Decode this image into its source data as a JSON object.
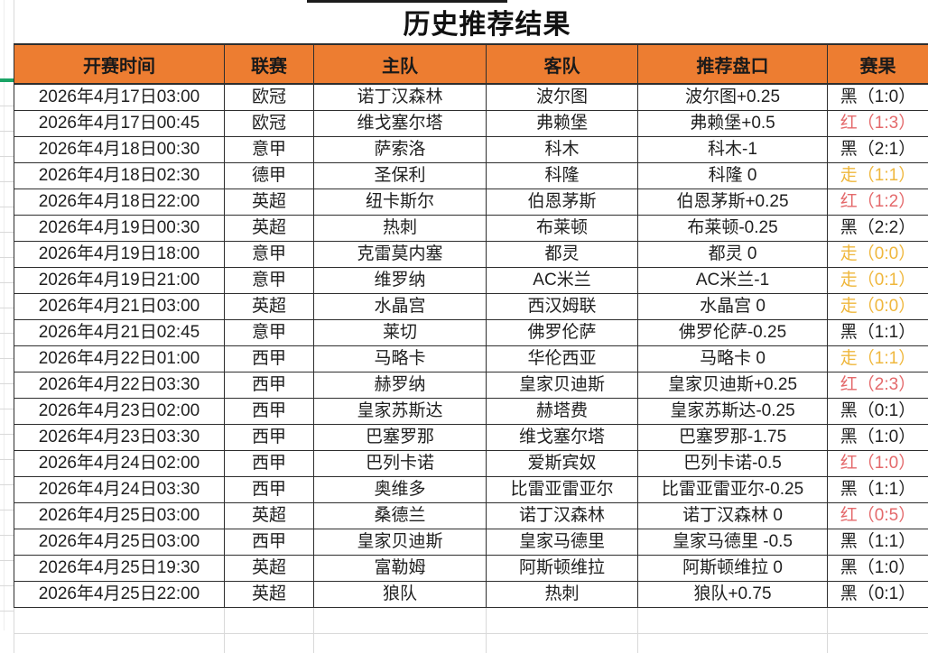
{
  "title": "历史推荐结果",
  "columns": [
    "开赛时间",
    "联赛",
    "主队",
    "客队",
    "推荐盘口",
    "赛果"
  ],
  "rows": [
    {
      "time": "2026年4月17日03:00",
      "league": "欧冠",
      "home": "诺丁汉森林",
      "away": "波尔图",
      "handicap": "波尔图+0.25",
      "result": "黑（1:0）",
      "result_color": "black"
    },
    {
      "time": "2026年4月17日00:45",
      "league": "欧冠",
      "home": "维戈塞尔塔",
      "away": "弗赖堡",
      "handicap": "弗赖堡+0.5",
      "result": "红（1:3）",
      "result_color": "red"
    },
    {
      "time": "2026年4月18日00:30",
      "league": "意甲",
      "home": "萨索洛",
      "away": "科木",
      "handicap": "科木-1",
      "result": "黑（2:1）",
      "result_color": "black"
    },
    {
      "time": "2026年4月18日02:30",
      "league": "德甲",
      "home": "圣保利",
      "away": "科隆",
      "handicap": "科隆 0",
      "result": "走（1:1）",
      "result_color": "push"
    },
    {
      "time": "2026年4月18日22:00",
      "league": "英超",
      "home": "纽卡斯尔",
      "away": "伯恩茅斯",
      "handicap": "伯恩茅斯+0.25",
      "result": "红（1:2）",
      "result_color": "red"
    },
    {
      "time": "2026年4月19日00:30",
      "league": "英超",
      "home": "热刺",
      "away": "布莱顿",
      "handicap": "布莱顿-0.25",
      "result": "黑（2:2）",
      "result_color": "black"
    },
    {
      "time": "2026年4月19日18:00",
      "league": "意甲",
      "home": "克雷莫内塞",
      "away": "都灵",
      "handicap": "都灵 0",
      "result": "走（0:0）",
      "result_color": "push"
    },
    {
      "time": "2026年4月19日21:00",
      "league": "意甲",
      "home": "维罗纳",
      "away": "AC米兰",
      "handicap": "AC米兰-1",
      "result": "走（0:1）",
      "result_color": "push"
    },
    {
      "time": "2026年4月21日03:00",
      "league": "英超",
      "home": "水晶宫",
      "away": "西汉姆联",
      "handicap": "水晶宫 0",
      "result": "走（0:0）",
      "result_color": "push"
    },
    {
      "time": "2026年4月21日02:45",
      "league": "意甲",
      "home": "莱切",
      "away": "佛罗伦萨",
      "handicap": "佛罗伦萨-0.25",
      "result": "黑（1:1）",
      "result_color": "black"
    },
    {
      "time": "2026年4月22日01:00",
      "league": "西甲",
      "home": "马略卡",
      "away": "华伦西亚",
      "handicap": "马略卡 0",
      "result": "走（1:1）",
      "result_color": "push"
    },
    {
      "time": "2026年4月22日03:30",
      "league": "西甲",
      "home": "赫罗纳",
      "away": "皇家贝迪斯",
      "handicap": "皇家贝迪斯+0.25",
      "result": "红（2:3）",
      "result_color": "red"
    },
    {
      "time": "2026年4月23日02:00",
      "league": "西甲",
      "home": "皇家苏斯达",
      "away": "赫塔费",
      "handicap": "皇家苏斯达-0.25",
      "result": "黑（0:1）",
      "result_color": "black"
    },
    {
      "time": "2026年4月23日03:30",
      "league": "西甲",
      "home": "巴塞罗那",
      "away": "维戈塞尔塔",
      "handicap": "巴塞罗那-1.75",
      "result": "黑（1:0）",
      "result_color": "black"
    },
    {
      "time": "2026年4月24日02:00",
      "league": "西甲",
      "home": "巴列卡诺",
      "away": "爱斯宾奴",
      "handicap": "巴列卡诺-0.5",
      "result": "红（1:0）",
      "result_color": "red"
    },
    {
      "time": "2026年4月24日03:30",
      "league": "西甲",
      "home": "奥维多",
      "away": "比雷亚雷亚尔",
      "handicap": "比雷亚雷亚尔-0.25",
      "result": "黑（1:1）",
      "result_color": "black"
    },
    {
      "time": "2026年4月25日03:00",
      "league": "英超",
      "home": "桑德兰",
      "away": "诺丁汉森林",
      "handicap": "诺丁汉森林 0",
      "result": "红（0:5）",
      "result_color": "red"
    },
    {
      "time": "2026年4月25日03:00",
      "league": "西甲",
      "home": "皇家贝迪斯",
      "away": "皇家马德里",
      "handicap": "皇家马德里 -0.5",
      "result": "黑（1:1）",
      "result_color": "black"
    },
    {
      "time": "2026年4月25日19:30",
      "league": "英超",
      "home": "富勒姆",
      "away": "阿斯顿维拉",
      "handicap": "阿斯顿维拉 0",
      "result": "黑（1:0）",
      "result_color": "black"
    },
    {
      "time": "2026年4月25日22:00",
      "league": "英超",
      "home": "狼队",
      "away": "热刺",
      "handicap": "狼队+0.75",
      "result": "黑（0:1）",
      "result_color": "black"
    }
  ],
  "colors": {
    "header_bg": "#ED7D31",
    "border_dark": "#2e2e2e",
    "grid_light": "#d9d9d9",
    "freeze_green": "#1BA466",
    "result_black": "#1f1f1f",
    "result_red": "#E4696B",
    "result_push": "#EFB73D"
  }
}
